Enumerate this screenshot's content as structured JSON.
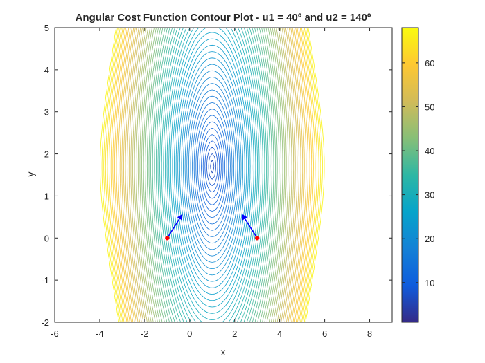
{
  "chart_data": {
    "type": "contour",
    "title": "Angular Cost Function Contour Plot - u1 = 40º and u2 = 140º",
    "xlabel": "x",
    "ylabel": "y",
    "xlim": [
      -6,
      9
    ],
    "ylim": [
      -2,
      5
    ],
    "xticks": [
      "-6",
      "-4",
      "-2",
      "0",
      "2",
      "4",
      "6",
      "8"
    ],
    "yticks": [
      "-2",
      "-1",
      "0",
      "1",
      "2",
      "3",
      "4",
      "5"
    ],
    "contour": {
      "center": [
        1,
        1.7
      ],
      "side_centers_y": 1.7,
      "side_centers_x": [
        -5.5,
        7.6
      ],
      "level_min": 1,
      "level_max": 67,
      "level_step": 1
    },
    "colorbar": {
      "limits": [
        1,
        68
      ],
      "ticks": [
        "10",
        "20",
        "30",
        "40",
        "50",
        "60"
      ],
      "colormap": "parula"
    },
    "sensors": [
      {
        "position": [
          -1,
          0
        ],
        "angle_deg": 40,
        "color": "#ff0000"
      },
      {
        "position": [
          3,
          0
        ],
        "angle_deg": 140,
        "color": "#ff0000"
      }
    ],
    "arrow_color": "#0000ff",
    "grid": false
  }
}
